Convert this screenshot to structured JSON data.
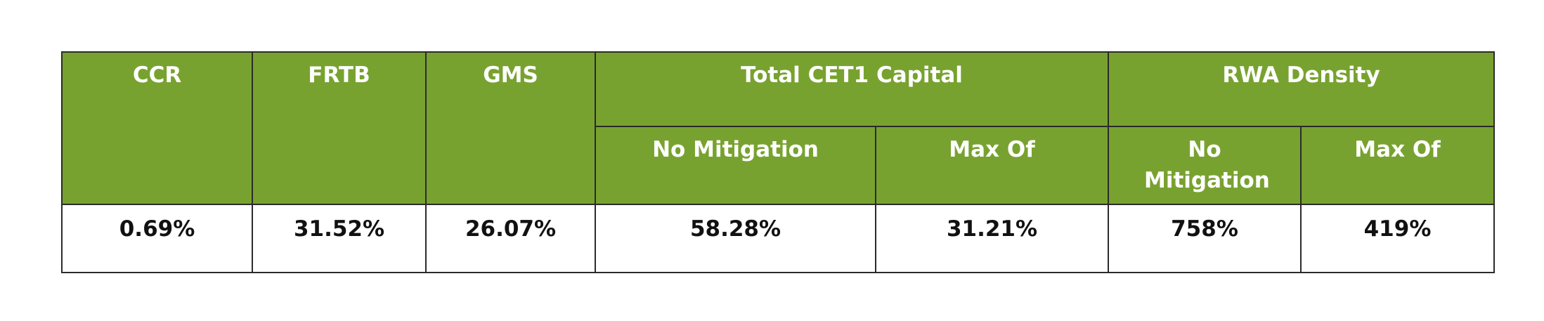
{
  "table": {
    "columns": [
      "CCR",
      "FRTB",
      "GMS"
    ],
    "groups": [
      {
        "label": "Total CET1 Capital",
        "subcolumns": [
          "No Mitigation",
          "Max Of"
        ]
      },
      {
        "label": "RWA Density",
        "subcolumns": [
          "No Mitigation",
          "Max Of"
        ]
      }
    ],
    "rows": [
      [
        "0.69%",
        "31.52%",
        "26.07%",
        "58.28%",
        "31.21%",
        "758%",
        "419%"
      ]
    ]
  }
}
